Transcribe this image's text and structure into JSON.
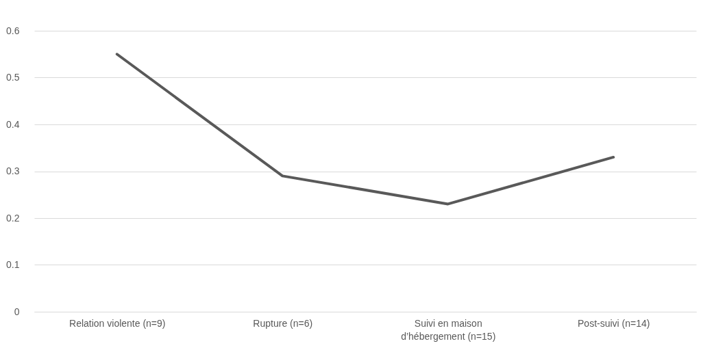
{
  "chart_data": {
    "type": "line",
    "categories": [
      "Relation violente (n=9)",
      "Rupture (n=6)",
      "Suivi en maison\nd’hébergement (n=15)",
      "Post-suivi (n=14)"
    ],
    "series": [
      {
        "color": "#595959",
        "values": [
          0.55,
          0.29,
          0.23,
          0.33
        ]
      }
    ],
    "ylim": [
      0,
      0.6
    ],
    "yticks": [
      0,
      0.1,
      0.2,
      0.3,
      0.4,
      0.5,
      0.6
    ],
    "grid": "y",
    "marker": "none",
    "line_style": "solid"
  }
}
